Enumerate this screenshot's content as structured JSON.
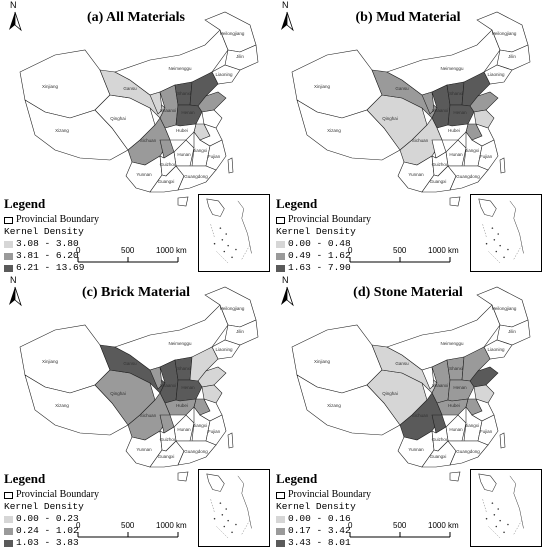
{
  "panels": [
    {
      "id": "a",
      "title": "(a) All Materials",
      "legend_title": "Legend",
      "boundary_label": "Provincial Boundary",
      "density_label": "Kernel Density",
      "classes": [
        {
          "range": "3.08 - 3.80",
          "color": "#d6d6d6"
        },
        {
          "range": "3.81 - 6.20",
          "color": "#9a9a9a"
        },
        {
          "range": "6.21 - 13.69",
          "color": "#5a5a5a"
        }
      ]
    },
    {
      "id": "b",
      "title": "(b) Mud Material",
      "legend_title": "Legend",
      "boundary_label": "Provincial Boundary",
      "density_label": "Kernel Density",
      "classes": [
        {
          "range": "0.00 - 0.48",
          "color": "#d6d6d6"
        },
        {
          "range": "0.49 - 1.62",
          "color": "#9a9a9a"
        },
        {
          "range": "1.63 - 7.90",
          "color": "#5a5a5a"
        }
      ]
    },
    {
      "id": "c",
      "title": "(c) Brick Material",
      "legend_title": "Legend",
      "boundary_label": "Provincial Boundary",
      "density_label": "Kernel Density",
      "classes": [
        {
          "range": "0.00 - 0.23",
          "color": "#d6d6d6"
        },
        {
          "range": "0.24 - 1.02",
          "color": "#9a9a9a"
        },
        {
          "range": "1.03 - 3.83",
          "color": "#5a5a5a"
        }
      ]
    },
    {
      "id": "d",
      "title": "(d) Stone Material",
      "legend_title": "Legend",
      "boundary_label": "Provincial Boundary",
      "density_label": "Kernel Density",
      "classes": [
        {
          "range": "0.00 - 0.16",
          "color": "#d6d6d6"
        },
        {
          "range": "0.17 - 3.42",
          "color": "#9a9a9a"
        },
        {
          "range": "3.43 - 8.01",
          "color": "#5a5a5a"
        }
      ]
    }
  ],
  "north_label": "N",
  "scale": {
    "t0": "0",
    "t1": "500",
    "t2": "1000 km"
  },
  "province_labels": {
    "xinjiang": "Xinjiang",
    "tibet": "Xizang",
    "qinghai": "Qinghai",
    "gansu": "Gansu",
    "inner_mongolia": "Neimenggu",
    "heilongjiang": "Heilongjiang",
    "jilin": "Jilin",
    "liaoning": "Liaoning",
    "sichuan": "Sichuan",
    "shaanxi": "Shaanxi",
    "shanxi": "Shanxi",
    "henan": "Henan",
    "hubei": "Hubei",
    "hunan": "Hunan",
    "yunnan": "Yunnan",
    "guangxi": "Guangxi",
    "guangdong": "Guangdong",
    "guizhou": "Guizhou",
    "fujian": "Fujian",
    "jiangxi": "Jiangxi"
  },
  "shading": {
    "a": {
      "gansu": 1,
      "shaanxi": 2,
      "shanxi": 3,
      "hebei": 3,
      "henan": 3,
      "shandong": 2,
      "sichuan": 2,
      "ningxia": 1,
      "chongqing": 2,
      "anhui": 1
    },
    "b": {
      "gansu": 2,
      "shaanxi": 3,
      "shanxi": 3,
      "hebei": 3,
      "henan": 3,
      "shandong": 2,
      "sichuan": 1,
      "qinghai": 1,
      "ningxia": 2,
      "anhui": 2,
      "jiangsu": 1
    },
    "c": {
      "gansu": 3,
      "shaanxi": 3,
      "shanxi": 3,
      "hebei": 1,
      "henan": 3,
      "shandong": 1,
      "sichuan": 2,
      "qinghai": 2,
      "ningxia": 2,
      "hubei": 2,
      "anhui": 2,
      "chongqing": 2,
      "jiangsu": 1
    },
    "d": {
      "gansu": 1,
      "shaanxi": 2,
      "shanxi": 2,
      "hebei": 2,
      "henan": 2,
      "shandong": 3,
      "sichuan": 3,
      "chongqing": 3,
      "qinghai": 1,
      "hubei": 2,
      "anhui": 2,
      "jiangsu": 1
    }
  }
}
